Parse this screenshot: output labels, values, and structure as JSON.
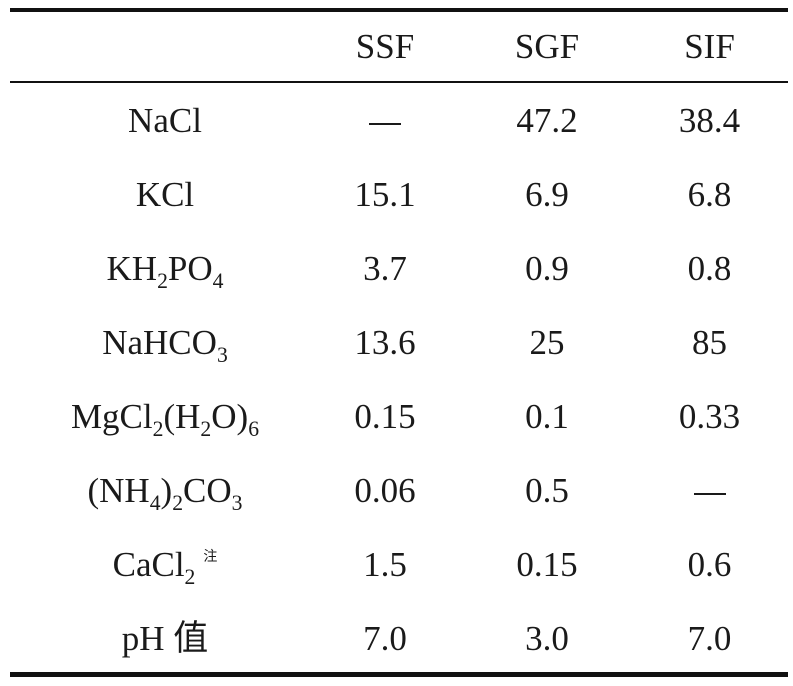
{
  "table": {
    "columns": [
      "",
      "SSF",
      "SGF",
      "SIF"
    ],
    "rows": [
      {
        "label": "NaCl",
        "ssf": "—",
        "sgf": "47.2",
        "sif": "38.4"
      },
      {
        "label": "KCl",
        "ssf": "15.1",
        "sgf": "6.9",
        "sif": "6.8"
      },
      {
        "label": "KH2PO4",
        "ssf": "3.7",
        "sgf": "0.9",
        "sif": "0.8"
      },
      {
        "label": "NaHCO3",
        "ssf": "13.6",
        "sgf": "25",
        "sif": "85"
      },
      {
        "label": "MgCl2(H2O)6",
        "ssf": "0.15",
        "sgf": "0.1",
        "sif": "0.33"
      },
      {
        "label": "(NH4)2CO3",
        "ssf": "0.06",
        "sgf": "0.5",
        "sif": "—"
      },
      {
        "label": "CaCl2",
        "label_note": "注",
        "ssf": "1.5",
        "sgf": "0.15",
        "sif": "0.6"
      },
      {
        "label": "pH 值",
        "ssf": "7.0",
        "sgf": "3.0",
        "sif": "7.0"
      }
    ]
  }
}
